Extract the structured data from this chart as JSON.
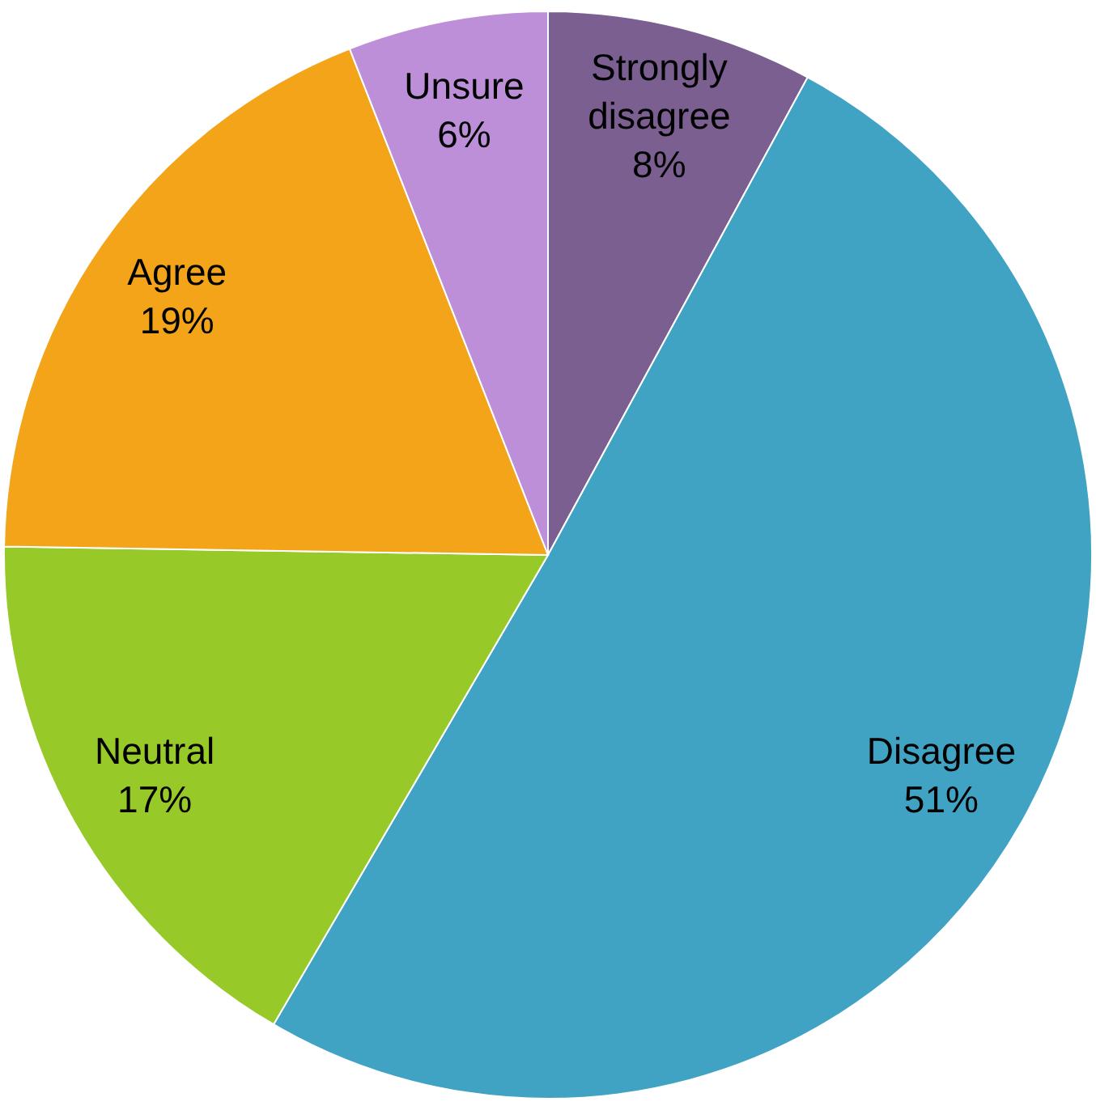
{
  "chart_data": {
    "type": "pie",
    "categories": [
      "Strongly disagree",
      "Disagree",
      "Neutral",
      "Agree",
      "Unsure"
    ],
    "values": [
      8,
      51,
      17,
      19,
      6
    ],
    "value_labels": [
      "8%",
      "51%",
      "17%",
      "19%",
      "6%"
    ],
    "colors": [
      "#7b5f91",
      "#41a3c3",
      "#97c928",
      "#f4a419",
      "#bd8fd8"
    ]
  }
}
